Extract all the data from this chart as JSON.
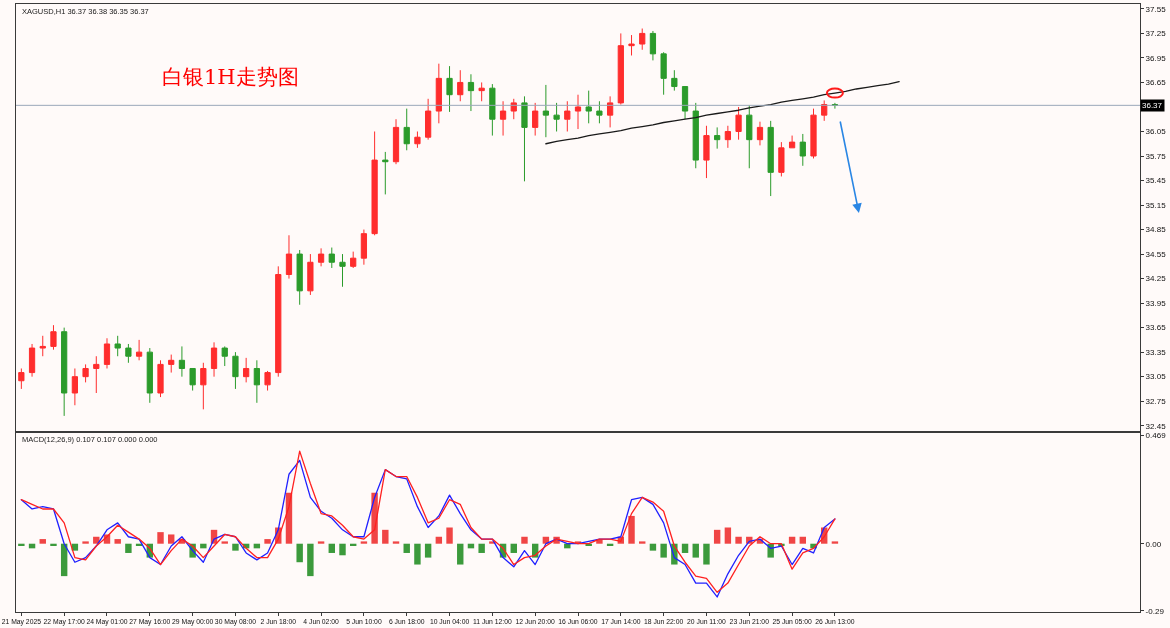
{
  "chart_data": [
    {
      "type": "candlestick",
      "title": "XAGUSD,H1 36.37 36.38 36.35 36.37",
      "annotations": [
        "白银1H走势图"
      ],
      "categories": [
        null,
        null,
        null,
        null,
        null,
        null,
        null,
        null,
        null,
        null,
        null,
        null,
        null,
        null,
        null,
        null,
        null,
        null,
        null,
        null,
        null,
        null,
        null,
        null,
        null,
        null,
        null,
        null,
        null,
        null,
        null,
        null,
        null,
        null,
        null,
        null,
        null,
        null,
        null,
        null,
        null,
        null,
        null,
        null,
        null,
        null,
        null,
        null,
        null,
        null,
        null,
        null,
        null,
        null,
        null,
        null,
        null,
        null,
        null,
        null,
        null,
        null,
        null,
        null,
        null,
        null,
        null,
        null,
        null,
        null,
        null,
        null,
        null,
        null,
        null,
        null,
        null,
        null,
        null,
        null,
        null,
        null,
        null,
        null,
        null,
        null,
        null,
        null,
        null,
        null,
        null,
        null,
        null,
        null,
        null,
        null,
        null,
        null,
        null,
        null,
        null,
        null,
        null,
        null,
        null
      ],
      "ohlc": [
        [
          33.0,
          33.15,
          32.9,
          33.1
        ],
        [
          33.1,
          33.45,
          33.05,
          33.4
        ],
        [
          33.4,
          33.55,
          33.3,
          33.42
        ],
        [
          33.42,
          33.68,
          33.38,
          33.6
        ],
        [
          33.6,
          33.65,
          32.57,
          32.85
        ],
        [
          32.85,
          33.15,
          32.7,
          33.05
        ],
        [
          33.05,
          33.2,
          32.98,
          33.15
        ],
        [
          33.15,
          33.3,
          32.85,
          33.2
        ],
        [
          33.2,
          33.52,
          33.15,
          33.45
        ],
        [
          33.45,
          33.55,
          33.3,
          33.4
        ],
        [
          33.4,
          33.45,
          33.22,
          33.3
        ],
        [
          33.3,
          33.5,
          33.25,
          33.35
        ],
        [
          33.35,
          33.4,
          32.73,
          32.85
        ],
        [
          32.85,
          33.25,
          32.8,
          33.2
        ],
        [
          33.2,
          33.32,
          33.1,
          33.25
        ],
        [
          33.25,
          33.42,
          33.05,
          33.15
        ],
        [
          33.15,
          33.15,
          32.88,
          32.95
        ],
        [
          32.95,
          33.22,
          32.65,
          33.15
        ],
        [
          33.15,
          33.47,
          33.05,
          33.4
        ],
        [
          33.4,
          33.42,
          33.18,
          33.3
        ],
        [
          33.3,
          33.35,
          32.9,
          33.05
        ],
        [
          33.05,
          33.28,
          32.98,
          33.15
        ],
        [
          33.15,
          33.25,
          32.73,
          32.95
        ],
        [
          32.95,
          33.12,
          32.88,
          33.1
        ],
        [
          33.1,
          34.4,
          33.05,
          34.3
        ],
        [
          34.3,
          34.78,
          34.25,
          34.55
        ],
        [
          34.55,
          34.6,
          33.93,
          34.1
        ],
        [
          34.1,
          34.55,
          34.05,
          34.45
        ],
        [
          34.45,
          34.62,
          34.4,
          34.55
        ],
        [
          34.55,
          34.63,
          34.38,
          34.45
        ],
        [
          34.45,
          34.55,
          34.15,
          34.4
        ],
        [
          34.4,
          34.58,
          34.38,
          34.5
        ],
        [
          34.5,
          34.85,
          34.42,
          34.8
        ],
        [
          34.8,
          36.05,
          34.78,
          35.7
        ],
        [
          35.7,
          35.8,
          35.28,
          35.68
        ],
        [
          35.68,
          36.2,
          35.65,
          36.1
        ],
        [
          36.1,
          36.33,
          35.82,
          35.9
        ],
        [
          35.9,
          36.05,
          35.85,
          35.98
        ],
        [
          35.98,
          36.45,
          35.95,
          36.3
        ],
        [
          36.3,
          36.88,
          36.15,
          36.7
        ],
        [
          36.7,
          36.85,
          36.29,
          36.5
        ],
        [
          36.5,
          36.8,
          36.42,
          36.65
        ],
        [
          36.65,
          36.75,
          36.3,
          36.55
        ],
        [
          36.55,
          36.65,
          36.42,
          36.58
        ],
        [
          36.58,
          36.63,
          36.0,
          36.2
        ],
        [
          36.2,
          36.42,
          36.0,
          36.3
        ],
        [
          36.3,
          36.45,
          36.2,
          36.4
        ],
        [
          36.4,
          36.48,
          35.44,
          36.1
        ],
        [
          36.1,
          36.4,
          36.0,
          36.3
        ],
        [
          36.3,
          36.62,
          35.98,
          36.25
        ],
        [
          36.25,
          36.4,
          36.05,
          36.2
        ],
        [
          36.2,
          36.42,
          36.05,
          36.3
        ],
        [
          36.3,
          36.5,
          36.08,
          36.35
        ],
        [
          36.35,
          36.55,
          36.15,
          36.3
        ],
        [
          36.3,
          36.42,
          36.15,
          36.25
        ],
        [
          36.25,
          36.48,
          36.1,
          36.4
        ],
        [
          36.4,
          37.25,
          36.38,
          37.1
        ],
        [
          37.1,
          37.23,
          36.98,
          37.12
        ],
        [
          37.12,
          37.31,
          37.05,
          37.25
        ],
        [
          37.25,
          37.28,
          36.92,
          37.0
        ],
        [
          37.0,
          37.02,
          36.5,
          36.7
        ],
        [
          36.7,
          36.8,
          36.55,
          36.6
        ],
        [
          36.6,
          36.6,
          36.2,
          36.3
        ],
        [
          36.3,
          36.4,
          35.6,
          35.7
        ],
        [
          35.7,
          36.12,
          35.48,
          36.0
        ],
        [
          36.0,
          36.1,
          35.84,
          35.95
        ],
        [
          35.95,
          36.12,
          35.85,
          36.05
        ],
        [
          36.05,
          36.35,
          35.95,
          36.25
        ],
        [
          36.25,
          36.37,
          35.6,
          35.95
        ],
        [
          35.95,
          36.17,
          35.88,
          36.1
        ],
        [
          36.1,
          36.18,
          35.26,
          35.55
        ],
        [
          35.55,
          35.92,
          35.5,
          35.85
        ],
        [
          35.85,
          36.0,
          35.85,
          35.92
        ],
        [
          35.92,
          36.02,
          35.63,
          35.75
        ],
        [
          35.75,
          36.33,
          35.72,
          36.25
        ],
        [
          36.25,
          36.43,
          36.18,
          36.38
        ],
        [
          36.38,
          36.4,
          36.33,
          36.37
        ],
        null,
        null,
        null,
        null,
        null,
        null,
        null,
        null,
        null,
        null,
        null,
        null,
        null,
        null,
        null,
        null,
        null,
        null,
        null,
        null,
        null,
        null,
        null,
        null,
        null,
        null,
        null,
        null
      ],
      "colors": [
        "#ff2d2d",
        "#ff2d2d",
        "#ff2d2d",
        "#ff2d2d",
        "#2b9b2b",
        "#ff2d2d",
        "#ff2d2d",
        "#ff2d2d",
        "#ff2d2d",
        "#2b9b2b",
        "#2b9b2b",
        "#ff2d2d",
        "#2b9b2b",
        "#ff2d2d",
        "#ff2d2d",
        "#2b9b2b",
        "#2b9b2b",
        "#ff2d2d",
        "#ff2d2d",
        "#2b9b2b",
        "#2b9b2b",
        "#ff2d2d",
        "#2b9b2b",
        "#ff2d2d",
        "#ff2d2d",
        "#ff2d2d",
        "#2b9b2b",
        "#ff2d2d",
        "#ff2d2d",
        "#2b9b2b",
        "#2b9b2b",
        "#ff2d2d",
        "#ff2d2d",
        "#ff2d2d",
        "#2b9b2b",
        "#ff2d2d",
        "#2b9b2b",
        "#ff2d2d",
        "#ff2d2d",
        "#ff2d2d",
        "#2b9b2b",
        "#ff2d2d",
        "#2b9b2b",
        "#ff2d2d",
        "#2b9b2b",
        "#ff2d2d",
        "#ff2d2d",
        "#2b9b2b",
        "#ff2d2d",
        "#2b9b2b",
        "#2b9b2b",
        "#ff2d2d",
        "#ff2d2d",
        "#2b9b2b",
        "#2b9b2b",
        "#ff2d2d",
        "#ff2d2d",
        "#ff2d2d",
        "#ff2d2d",
        "#2b9b2b",
        "#2b9b2b",
        "#2b9b2b",
        "#2b9b2b",
        "#2b9b2b",
        "#ff2d2d",
        "#2b9b2b",
        "#ff2d2d",
        "#ff2d2d",
        "#2b9b2b",
        "#ff2d2d",
        "#2b9b2b",
        "#ff2d2d",
        "#ff2d2d",
        "#2b9b2b",
        "#ff2d2d",
        "#ff2d2d",
        "#2b9b2b",
        null,
        null,
        null,
        null,
        null,
        null,
        null,
        null,
        null,
        null,
        null,
        null,
        null,
        null,
        null,
        null,
        null,
        null,
        null,
        null,
        null,
        null,
        null,
        null,
        null,
        null,
        null,
        null
      ],
      "series": [
        {
          "type": "line",
          "color": "#1a1a1a",
          "values": [
            null,
            null,
            null,
            null,
            null,
            null,
            null,
            null,
            null,
            null,
            null,
            null,
            null,
            null,
            null,
            null,
            null,
            null,
            null,
            null,
            null,
            null,
            null,
            null,
            null,
            null,
            null,
            null,
            null,
            null,
            null,
            null,
            null,
            null,
            null,
            null,
            null,
            null,
            null,
            null,
            null,
            null,
            null,
            null,
            null,
            null,
            null,
            null,
            null,
            35.9,
            35.93,
            35.95,
            35.97,
            36.0,
            36.02,
            36.04,
            36.06,
            36.09,
            36.11,
            36.13,
            36.16,
            36.18,
            36.2,
            36.22,
            36.25,
            36.27,
            36.29,
            36.31,
            36.34,
            36.36,
            36.38,
            36.41,
            36.43,
            36.45,
            36.47,
            36.5,
            36.52,
            36.54,
            36.57,
            36.59,
            36.61,
            36.63,
            36.66,
            null,
            null,
            null,
            null,
            null,
            null,
            null,
            null,
            null,
            null,
            null,
            null,
            null,
            null,
            null,
            null,
            null,
            null,
            null,
            null,
            null,
            null
          ]
        }
      ],
      "ylim": [
        32.39,
        37.61
      ],
      "yticks": [
        37.55,
        37.25,
        36.95,
        36.65,
        36.05,
        35.75,
        35.45,
        35.15,
        34.85,
        34.55,
        34.25,
        33.95,
        33.65,
        33.35,
        33.05,
        32.75,
        32.45
      ],
      "tick_labels": "y",
      "ref_lines": [
        {
          "axis": "y",
          "value": 36.37,
          "label": "36.37",
          "color": "#9ba8ba"
        }
      ]
    },
    {
      "type": "bar",
      "title": "MACD(12,26,9) 0.107 0.107 0.000 0.000",
      "categories": [
        "21 May 2025",
        null,
        null,
        null,
        "22 May 17:00",
        null,
        null,
        null,
        "24 May 01:00",
        null,
        null,
        null,
        "27 May 16:00",
        null,
        null,
        null,
        "29 May 00:00",
        null,
        null,
        null,
        "30 May 08:00",
        null,
        null,
        null,
        "2 Jun 18:00",
        null,
        null,
        null,
        "4 Jun 02:00",
        null,
        null,
        null,
        "5 Jun 10:00",
        null,
        null,
        null,
        "6 Jun 18:00",
        null,
        null,
        null,
        "10 Jun 04:00",
        null,
        null,
        null,
        "11 Jun 12:00",
        null,
        null,
        null,
        "12 Jun 20:00",
        null,
        null,
        null,
        "16 Jun 06:00",
        null,
        null,
        null,
        "17 Jun 14:00",
        null,
        null,
        null,
        "18 Jun 22:00",
        null,
        null,
        null,
        "20 Jun 11:00",
        null,
        null,
        null,
        "23 Jun 21:00",
        null,
        null,
        null,
        "25 Jun 05:00",
        null,
        null,
        null,
        "26 Jun 13:00",
        null,
        null,
        null,
        null,
        null,
        null,
        null,
        null,
        null,
        null,
        null,
        null,
        null,
        null,
        null,
        null,
        null,
        null,
        null,
        null,
        null,
        null,
        null,
        null,
        null,
        null,
        null,
        null
      ],
      "series": [
        {
          "values": [
            -0.01,
            -0.02,
            0.02,
            -0.01,
            -0.14,
            -0.03,
            0.01,
            0.03,
            0.04,
            0.02,
            -0.04,
            -0.01,
            -0.06,
            0.05,
            0.04,
            0.02,
            -0.06,
            -0.02,
            0.06,
            0.01,
            -0.03,
            -0.02,
            -0.02,
            0.02,
            0.07,
            0.22,
            -0.08,
            -0.14,
            0.01,
            -0.04,
            -0.05,
            -0.01,
            0.01,
            0.22,
            0.06,
            0.01,
            -0.04,
            -0.09,
            -0.06,
            0.03,
            0.07,
            -0.09,
            -0.02,
            -0.04,
            0.01,
            -0.06,
            -0.04,
            0.03,
            -0.06,
            0.03,
            0.03,
            -0.02,
            0.01,
            -0.01,
            0.02,
            -0.01,
            0.03,
            0.12,
            0.01,
            -0.03,
            -0.06,
            -0.09,
            -0.04,
            -0.06,
            -0.09,
            0.06,
            0.07,
            0.03,
            0.03,
            0.02,
            -0.06,
            -0.01,
            0.03,
            0.03,
            -0.02,
            0.07,
            0.01,
            null,
            null,
            null,
            null,
            null,
            null,
            null,
            null,
            null,
            null,
            null,
            null,
            null,
            null,
            null,
            null,
            null,
            null,
            null,
            null,
            null,
            null,
            null,
            null,
            null,
            null,
            null,
            null
          ],
          "colors": [
            "#3c9a3c",
            "#3c9a3c",
            "#f04545",
            "#3c9a3c",
            "#3c9a3c",
            "#3c9a3c",
            "#f04545",
            "#f04545",
            "#f04545",
            "#f04545",
            "#3c9a3c",
            "#3c9a3c",
            "#3c9a3c",
            "#f04545",
            "#f04545",
            "#f04545",
            "#3c9a3c",
            "#3c9a3c",
            "#f04545",
            "#f04545",
            "#3c9a3c",
            "#3c9a3c",
            "#3c9a3c",
            "#f04545",
            "#f04545",
            "#f04545",
            "#3c9a3c",
            "#3c9a3c",
            "#f04545",
            "#3c9a3c",
            "#3c9a3c",
            "#3c9a3c",
            "#f04545",
            "#f04545",
            "#f04545",
            "#f04545",
            "#3c9a3c",
            "#3c9a3c",
            "#3c9a3c",
            "#f04545",
            "#f04545",
            "#3c9a3c",
            "#3c9a3c",
            "#3c9a3c",
            "#f04545",
            "#3c9a3c",
            "#3c9a3c",
            "#f04545",
            "#3c9a3c",
            "#f04545",
            "#f04545",
            "#3c9a3c",
            "#f04545",
            "#3c9a3c",
            "#f04545",
            "#3c9a3c",
            "#f04545",
            "#f04545",
            "#f04545",
            "#3c9a3c",
            "#3c9a3c",
            "#3c9a3c",
            "#3c9a3c",
            "#3c9a3c",
            "#3c9a3c",
            "#f04545",
            "#f04545",
            "#f04545",
            "#f04545",
            "#f04545",
            "#3c9a3c",
            "#3c9a3c",
            "#f04545",
            "#f04545",
            "#3c9a3c",
            "#f04545",
            "#f04545",
            null,
            null,
            null,
            null,
            null,
            null,
            null,
            null,
            null,
            null,
            null,
            null,
            null,
            null,
            null,
            null,
            null,
            null,
            null,
            null,
            null,
            null,
            null,
            null,
            null,
            null,
            null,
            null
          ]
        },
        {
          "type": "line",
          "color": "#2020ff",
          "values": [
            0.19,
            0.15,
            0.16,
            0.15,
            0.0,
            -0.08,
            -0.06,
            -0.01,
            0.06,
            0.09,
            0.03,
            0.02,
            -0.06,
            -0.09,
            -0.01,
            0.03,
            -0.03,
            -0.08,
            0.02,
            0.04,
            0.03,
            -0.04,
            -0.07,
            -0.04,
            0.06,
            0.3,
            0.36,
            0.2,
            0.14,
            0.11,
            0.06,
            0.03,
            0.03,
            0.2,
            0.32,
            0.29,
            0.28,
            0.16,
            0.07,
            0.12,
            0.21,
            0.13,
            0.06,
            0.02,
            0.02,
            -0.06,
            -0.1,
            -0.03,
            -0.09,
            0.0,
            0.02,
            0.0,
            0.0,
            0.01,
            0.02,
            0.02,
            0.03,
            0.19,
            0.2,
            0.17,
            0.09,
            -0.06,
            -0.09,
            -0.17,
            -0.17,
            -0.23,
            -0.13,
            -0.05,
            0.01,
            0.02,
            -0.02,
            -0.01,
            -0.09,
            -0.02,
            -0.04,
            0.07,
            0.107,
            null,
            null,
            null,
            null,
            null,
            null,
            null,
            null,
            null,
            null,
            null,
            null,
            null,
            null,
            null,
            null,
            null,
            null,
            null,
            null,
            null,
            null,
            null,
            null,
            null,
            null,
            null,
            null
          ]
        },
        {
          "type": "line",
          "color": "#ff2020",
          "values": [
            0.19,
            0.17,
            0.15,
            0.15,
            0.09,
            -0.06,
            -0.07,
            -0.01,
            0.03,
            0.08,
            0.05,
            0.02,
            -0.02,
            -0.09,
            -0.03,
            0.02,
            -0.01,
            -0.06,
            -0.01,
            0.04,
            0.03,
            -0.02,
            -0.06,
            -0.06,
            0.02,
            0.16,
            0.4,
            0.26,
            0.13,
            0.12,
            0.08,
            0.03,
            0.02,
            0.06,
            0.32,
            0.29,
            0.29,
            0.2,
            0.09,
            0.11,
            0.19,
            0.17,
            0.07,
            0.02,
            0.02,
            -0.02,
            -0.09,
            -0.06,
            -0.05,
            -0.01,
            0.02,
            0.01,
            0.0,
            0.0,
            0.02,
            0.02,
            0.01,
            0.13,
            0.2,
            0.18,
            0.14,
            -0.01,
            -0.08,
            -0.14,
            -0.15,
            -0.21,
            -0.17,
            -0.09,
            -0.01,
            0.03,
            0.0,
            0.0,
            -0.11,
            -0.04,
            -0.02,
            0.03,
            0.107,
            null,
            null,
            null,
            null,
            null,
            null,
            null,
            null,
            null,
            null,
            null,
            null,
            null,
            null,
            null,
            null,
            null,
            null,
            null,
            null,
            null,
            null,
            null,
            null,
            null,
            null,
            null,
            null
          ]
        }
      ],
      "ylim": [
        -0.295,
        0.48
      ],
      "yticks": [
        0.469,
        {
          "value": 0,
          "label": "0.00"
        },
        -0.29
      ]
    }
  ]
}
